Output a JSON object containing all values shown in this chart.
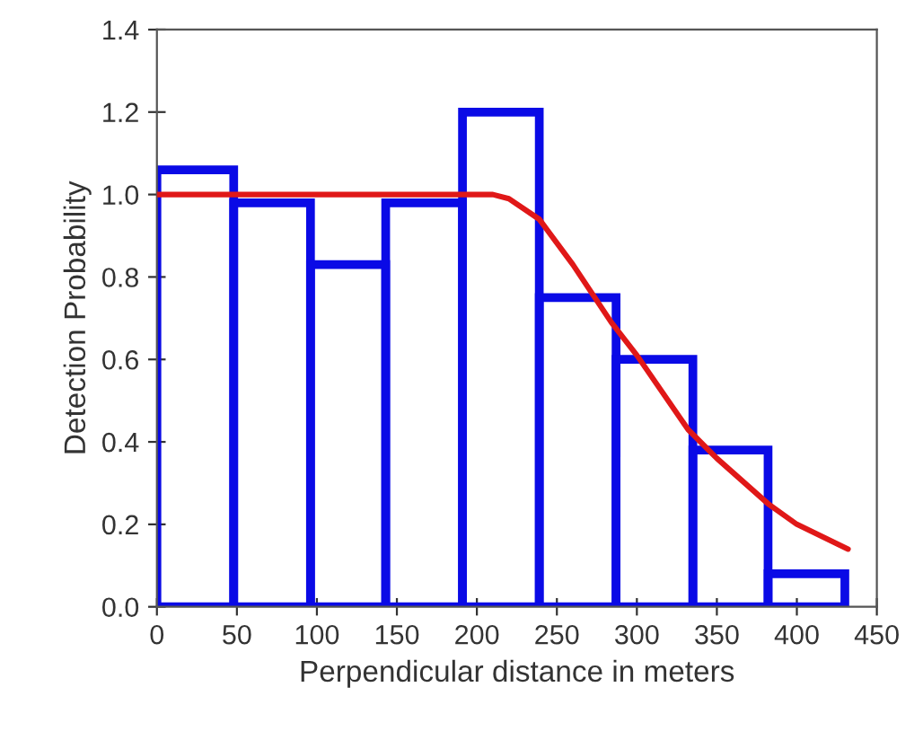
{
  "chart_data": {
    "type": "histogram",
    "xlabel": "Perpendicular distance in meters",
    "ylabel": "Detection Probability",
    "bins": [
      0,
      48,
      96,
      143,
      191,
      239,
      287,
      335,
      382,
      430
    ],
    "values": [
      1.06,
      0.98,
      0.83,
      0.98,
      1.2,
      0.75,
      0.6,
      0.38,
      0.08
    ],
    "color": "#0a0ae6",
    "series": [
      {
        "type": "line",
        "color": "#e01818",
        "x": [
          0,
          100,
          193,
          210,
          220,
          239,
          260,
          284,
          300,
          332,
          350,
          382,
          400,
          432
        ],
        "values": [
          1.0,
          1.0,
          1.0,
          1.0,
          0.99,
          0.94,
          0.83,
          0.69,
          0.61,
          0.43,
          0.36,
          0.25,
          0.2,
          0.14
        ]
      }
    ],
    "xlim": [
      0,
      450
    ],
    "xticks": [
      0,
      50,
      100,
      150,
      200,
      250,
      300,
      350,
      400,
      450
    ],
    "ylim": [
      0,
      1.4
    ],
    "yticks": [
      {
        "value": 0,
        "label": "0.0"
      },
      {
        "value": 0.2,
        "label": "0.2"
      },
      {
        "value": 0.4,
        "label": "0.4"
      },
      {
        "value": 0.6,
        "label": "0.6"
      },
      {
        "value": 0.8,
        "label": "0.8"
      },
      {
        "value": 1.0,
        "label": "1.0"
      },
      {
        "value": 1.2,
        "label": "1.2"
      },
      {
        "value": 1.4,
        "label": "1.4"
      }
    ],
    "grid": false
  }
}
